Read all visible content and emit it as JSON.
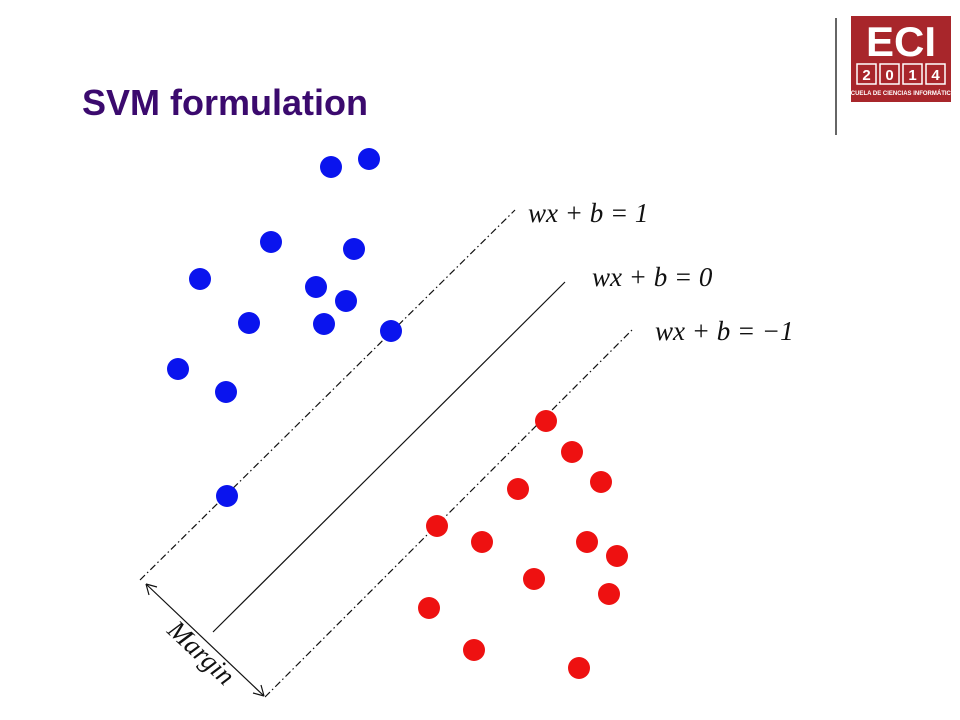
{
  "header": {
    "title": "SVM formulation",
    "logo": {
      "name": "ECI",
      "year": [
        "2",
        "0",
        "1",
        "4"
      ],
      "subtitle": "ESCUELA DE CIENCIAS INFORMÁTICAS"
    }
  },
  "diagram": {
    "lines": [
      {
        "label": "wx + b = 1"
      },
      {
        "label": "wx + b = 0"
      },
      {
        "label": "wx + b = −1"
      }
    ],
    "margin_label": "Margin"
  }
}
